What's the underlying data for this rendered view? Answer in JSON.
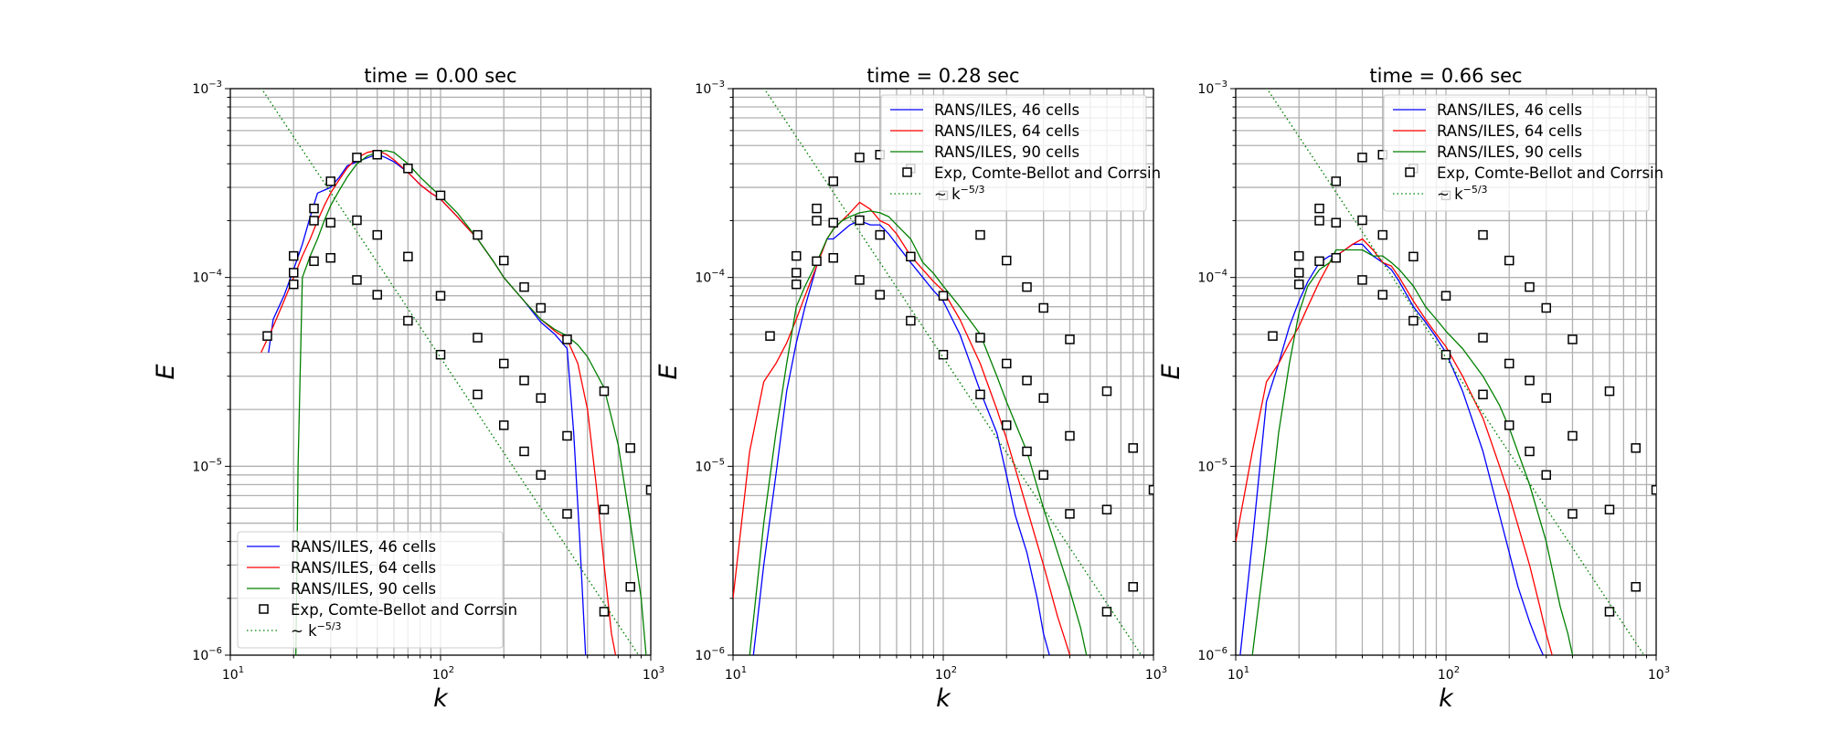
{
  "chart_data": [
    {
      "type": "line",
      "title": "time = 0.00 sec",
      "xlabel": "k",
      "ylabel": "E",
      "xscale": "log",
      "yscale": "log",
      "xlim": [
        10,
        1000
      ],
      "ylim": [
        1e-06,
        0.001
      ],
      "grid": true,
      "legend_position": "lower-left",
      "series": [
        {
          "name": "RANS/ILES, 46 cells",
          "color": "#0000ff",
          "style": "solid",
          "x": [
            15.2,
            16,
            18,
            20,
            22,
            24,
            26,
            28,
            30,
            33,
            36,
            40,
            45,
            50,
            55,
            60,
            70,
            80,
            90,
            100,
            120,
            150,
            180,
            200,
            250,
            300,
            350,
            400,
            430,
            460,
            490
          ],
          "y": [
            4e-05,
            6e-05,
            8e-05,
            0.00011,
            0.00015,
            0.00021,
            0.00028,
            0.00029,
            0.0003,
            0.00034,
            0.00039,
            0.00041,
            0.00043,
            0.00045,
            0.00043,
            0.00041,
            0.00036,
            0.00031,
            0.00028,
            0.00026,
            0.00021,
            0.00016,
            0.00012,
            0.0001,
            7.5e-05,
            5.8e-05,
            5e-05,
            4.2e-05,
            1.5e-05,
            4e-06,
            1e-06
          ]
        },
        {
          "name": "RANS/ILES, 64 cells",
          "color": "#ff0000",
          "style": "solid",
          "x": [
            14,
            16,
            18,
            20,
            22,
            24,
            26,
            28,
            30,
            33,
            36,
            40,
            45,
            50,
            55,
            60,
            70,
            80,
            90,
            100,
            120,
            150,
            180,
            200,
            250,
            300,
            350,
            400,
            450,
            500,
            550,
            600,
            650,
            680
          ],
          "y": [
            4e-05,
            5.5e-05,
            7.5e-05,
            0.0001,
            0.00013,
            0.00016,
            0.0002,
            0.00024,
            0.00028,
            0.00033,
            0.00038,
            0.00043,
            0.00046,
            0.00047,
            0.00045,
            0.00042,
            0.00036,
            0.00031,
            0.00028,
            0.00026,
            0.00021,
            0.00016,
            0.00012,
            0.0001,
            7.5e-05,
            6e-05,
            5.2e-05,
            4.7e-05,
            3.5e-05,
            2e-05,
            8e-06,
            3e-06,
            1.3e-06,
            1e-06
          ]
        },
        {
          "name": "RANS/ILES, 90 cells",
          "color": "#008000",
          "style": "solid",
          "x": [
            20.5,
            21,
            22,
            24,
            26,
            28,
            30,
            33,
            36,
            40,
            45,
            50,
            55,
            60,
            70,
            80,
            90,
            100,
            120,
            150,
            180,
            200,
            250,
            300,
            350,
            400,
            450,
            500,
            600,
            700,
            800,
            900,
            950
          ],
          "y": [
            1e-06,
            1e-05,
            0.0001,
            0.00013,
            0.00016,
            0.0002,
            0.00024,
            0.00029,
            0.00034,
            0.0004,
            0.00044,
            0.00046,
            0.00047,
            0.00046,
            0.0004,
            0.00034,
            0.0003,
            0.00027,
            0.00022,
            0.00016,
            0.00012,
            0.0001,
            7.5e-05,
            6e-05,
            5.3e-05,
            4.9e-05,
            4.4e-05,
            3.8e-05,
            2.6e-05,
            1.3e-05,
            5e-06,
            2e-06,
            1e-06
          ]
        },
        {
          "name": "Exp, Comte-Bellot and Corrsin",
          "color": "#000000",
          "style": "square",
          "x": [
            15,
            20,
            20,
            20,
            25,
            25,
            25,
            30,
            30,
            30,
            40,
            40,
            40,
            50,
            50,
            50,
            70,
            70,
            70,
            100,
            100,
            100,
            150,
            150,
            150,
            200,
            200,
            200,
            250,
            250,
            250,
            300,
            300,
            300,
            400,
            400,
            400,
            600,
            600,
            600,
            800,
            800,
            1000
          ],
          "y": [
            4.9e-05,
            0.00013,
            0.000106,
            9.2e-05,
            0.000232,
            0.0002,
            0.000122,
            0.000323,
            0.000195,
            0.000127,
            0.000432,
            0.000201,
            9.7e-05,
            0.000447,
            0.000168,
            8.1e-05,
            0.000378,
            0.000129,
            5.9e-05,
            0.000272,
            8e-05,
            3.9e-05,
            0.000168,
            4.8e-05,
            2.4e-05,
            0.000123,
            3.5e-05,
            1.65e-05,
            8.9e-05,
            2.85e-05,
            1.2e-05,
            6.9e-05,
            2.3e-05,
            9e-06,
            4.7e-05,
            1.45e-05,
            5.6e-06,
            2.5e-05,
            5.9e-06,
            1.7e-06,
            1.25e-05,
            2.3e-06,
            7.5e-06
          ]
        },
        {
          "name": "~ k^{-5/3}",
          "color": "#008000",
          "style": "dotted",
          "x": [
            14,
            1000
          ],
          "y": [
            0.00101,
            8e-07
          ]
        }
      ]
    },
    {
      "type": "line",
      "title": "time = 0.28 sec",
      "xlabel": "k",
      "ylabel": "E",
      "xscale": "log",
      "yscale": "log",
      "xlim": [
        10,
        1000
      ],
      "ylim": [
        1e-06,
        0.001
      ],
      "grid": true,
      "legend_position": "upper-right",
      "series": [
        {
          "name": "RANS/ILES, 46 cells",
          "color": "#0000ff",
          "style": "solid",
          "x": [
            12.5,
            14,
            16,
            18,
            20,
            22,
            25,
            28,
            30,
            33,
            36,
            40,
            45,
            50,
            55,
            60,
            70,
            80,
            90,
            100,
            120,
            150,
            180,
            200,
            220,
            250,
            280,
            300,
            320
          ],
          "y": [
            1e-06,
            3e-06,
            9e-06,
            2.5e-05,
            4.5e-05,
            7e-05,
            0.000115,
            0.00016,
            0.00016,
            0.000175,
            0.00019,
            0.0002,
            0.00019,
            0.00019,
            0.00017,
            0.00015,
            0.00012,
            0.0001,
            8.5e-05,
            7.5e-05,
            5e-05,
            2.5e-05,
            1.5e-05,
            9e-06,
            5.5e-06,
            3.5e-06,
            2e-06,
            1.3e-06,
            1e-06
          ]
        },
        {
          "name": "RANS/ILES, 64 cells",
          "color": "#ff0000",
          "style": "solid",
          "x": [
            10,
            12,
            14,
            16,
            18,
            20,
            22,
            25,
            28,
            30,
            33,
            36,
            40,
            45,
            50,
            55,
            60,
            70,
            80,
            90,
            100,
            120,
            150,
            180,
            200,
            250,
            300,
            350,
            380,
            400
          ],
          "y": [
            2e-06,
            1.2e-05,
            2.8e-05,
            3.5e-05,
            4.5e-05,
            6e-05,
            8e-05,
            0.000115,
            0.00016,
            0.00018,
            0.0002,
            0.00022,
            0.00025,
            0.00023,
            0.0002,
            0.00019,
            0.00017,
            0.00013,
            0.00011,
            9.5e-05,
            8.5e-05,
            6e-05,
            3.5e-05,
            2e-05,
            1.4e-05,
            6e-06,
            3e-06,
            1.6e-06,
            1.2e-06,
            1e-06
          ]
        },
        {
          "name": "RANS/ILES, 90 cells",
          "color": "#008000",
          "style": "solid",
          "x": [
            12,
            14,
            16,
            18,
            20,
            22,
            25,
            28,
            30,
            33,
            36,
            40,
            45,
            50,
            55,
            60,
            70,
            80,
            90,
            100,
            120,
            150,
            180,
            200,
            250,
            300,
            350,
            400,
            450,
            480
          ],
          "y": [
            1e-06,
            5e-06,
            1.5e-05,
            3.5e-05,
            7e-05,
            9e-05,
            0.00012,
            0.00016,
            0.00018,
            0.0002,
            0.00021,
            0.00022,
            0.000225,
            0.00022,
            0.00021,
            0.00019,
            0.00016,
            0.00012,
            0.000105,
            9e-05,
            7e-05,
            5e-05,
            3e-05,
            2.2e-05,
            1.2e-05,
            6e-06,
            3.5e-06,
            2.2e-06,
            1.4e-06,
            1e-06
          ]
        },
        {
          "name": "Exp, Comte-Bellot and Corrsin",
          "color": "#000000",
          "style": "square",
          "x": [
            15,
            20,
            20,
            20,
            25,
            25,
            25,
            30,
            30,
            30,
            40,
            40,
            40,
            50,
            50,
            50,
            70,
            70,
            70,
            100,
            100,
            100,
            150,
            150,
            150,
            200,
            200,
            200,
            250,
            250,
            250,
            300,
            300,
            300,
            400,
            400,
            400,
            600,
            600,
            600,
            800,
            800,
            1000
          ],
          "y": [
            4.9e-05,
            0.00013,
            0.000106,
            9.2e-05,
            0.000232,
            0.0002,
            0.000122,
            0.000323,
            0.000195,
            0.000127,
            0.000432,
            0.000201,
            9.7e-05,
            0.000447,
            0.000168,
            8.1e-05,
            0.000378,
            0.000129,
            5.9e-05,
            0.000272,
            8e-05,
            3.9e-05,
            0.000168,
            4.8e-05,
            2.4e-05,
            0.000123,
            3.5e-05,
            1.65e-05,
            8.9e-05,
            2.85e-05,
            1.2e-05,
            6.9e-05,
            2.3e-05,
            9e-06,
            4.7e-05,
            1.45e-05,
            5.6e-06,
            2.5e-05,
            5.9e-06,
            1.7e-06,
            1.25e-05,
            2.3e-06,
            7.5e-06
          ]
        },
        {
          "name": "~ k^{-5/3}",
          "color": "#008000",
          "style": "dotted",
          "x": [
            14,
            1000
          ],
          "y": [
            0.00101,
            8e-07
          ]
        }
      ]
    },
    {
      "type": "line",
      "title": "time = 0.66 sec",
      "xlabel": "k",
      "ylabel": "E",
      "xscale": "log",
      "yscale": "log",
      "xlim": [
        10,
        1000
      ],
      "ylim": [
        1e-06,
        0.001
      ],
      "grid": true,
      "legend_position": "upper-right",
      "series": [
        {
          "name": "RANS/ILES, 46 cells",
          "color": "#0000ff",
          "style": "solid",
          "x": [
            10.5,
            12,
            14,
            16,
            18,
            20,
            22,
            25,
            28,
            30,
            33,
            36,
            40,
            45,
            50,
            55,
            60,
            70,
            80,
            90,
            100,
            120,
            150,
            180,
            200,
            220,
            250,
            270,
            290
          ],
          "y": [
            1e-06,
            4e-06,
            2.2e-05,
            3.5e-05,
            5.5e-05,
            7.5e-05,
            9.5e-05,
            0.00012,
            0.00013,
            0.00013,
            0.00014,
            0.00015,
            0.00015,
            0.00013,
            0.00012,
            0.00011,
            9.5e-05,
            7e-05,
            5.8e-05,
            4.8e-05,
            4e-05,
            2.5e-05,
            1.2e-05,
            5.5e-06,
            3.5e-06,
            2.3e-06,
            1.5e-06,
            1.2e-06,
            1e-06
          ]
        },
        {
          "name": "RANS/ILES, 64 cells",
          "color": "#ff0000",
          "style": "solid",
          "x": [
            10,
            12,
            14,
            16,
            18,
            20,
            22,
            25,
            28,
            30,
            33,
            36,
            40,
            45,
            50,
            55,
            60,
            70,
            80,
            90,
            100,
            120,
            150,
            180,
            200,
            250,
            280,
            300,
            320
          ],
          "y": [
            4e-06,
            1.2e-05,
            2.8e-05,
            3.5e-05,
            4.5e-05,
            5.5e-05,
            7e-05,
            9.5e-05,
            0.00012,
            0.00013,
            0.00014,
            0.00015,
            0.00016,
            0.00014,
            0.00012,
            0.000115,
            0.0001,
            7.5e-05,
            6e-05,
            5e-05,
            4.3e-05,
            3e-05,
            1.8e-05,
            1e-05,
            7e-06,
            3e-06,
            1.8e-06,
            1.3e-06,
            1e-06
          ]
        },
        {
          "name": "RANS/ILES, 90 cells",
          "color": "#008000",
          "style": "solid",
          "x": [
            12,
            14,
            16,
            18,
            20,
            22,
            25,
            28,
            30,
            33,
            36,
            40,
            45,
            50,
            55,
            60,
            70,
            80,
            90,
            100,
            120,
            150,
            180,
            200,
            250,
            300,
            350,
            380,
            400
          ],
          "y": [
            1e-06,
            4e-06,
            1.5e-05,
            3.5e-05,
            6.5e-05,
            9e-05,
            0.00011,
            0.00012,
            0.00014,
            0.00014,
            0.00014,
            0.00014,
            0.00013,
            0.00013,
            0.00012,
            0.00011,
            9e-05,
            7e-05,
            6e-05,
            5.2e-05,
            4.2e-05,
            3e-05,
            2.1e-05,
            1.6e-05,
            8e-06,
            4e-06,
            1.8e-06,
            1.3e-06,
            1e-06
          ]
        },
        {
          "name": "Exp, Comte-Bellot and Corrsin",
          "color": "#000000",
          "style": "square",
          "x": [
            15,
            20,
            20,
            20,
            25,
            25,
            25,
            30,
            30,
            30,
            40,
            40,
            40,
            50,
            50,
            50,
            70,
            70,
            70,
            100,
            100,
            100,
            150,
            150,
            150,
            200,
            200,
            200,
            250,
            250,
            250,
            300,
            300,
            300,
            400,
            400,
            400,
            600,
            600,
            600,
            800,
            800,
            1000
          ],
          "y": [
            4.9e-05,
            0.00013,
            0.000106,
            9.2e-05,
            0.000232,
            0.0002,
            0.000122,
            0.000323,
            0.000195,
            0.000127,
            0.000432,
            0.000201,
            9.7e-05,
            0.000447,
            0.000168,
            8.1e-05,
            0.000378,
            0.000129,
            5.9e-05,
            0.000272,
            8e-05,
            3.9e-05,
            0.000168,
            4.8e-05,
            2.4e-05,
            0.000123,
            3.5e-05,
            1.65e-05,
            8.9e-05,
            2.85e-05,
            1.2e-05,
            6.9e-05,
            2.3e-05,
            9e-06,
            4.7e-05,
            1.45e-05,
            5.6e-06,
            2.5e-05,
            5.9e-06,
            1.7e-06,
            1.25e-05,
            2.3e-06,
            7.5e-06
          ]
        },
        {
          "name": "~ k^{-5/3}",
          "color": "#008000",
          "style": "dotted",
          "x": [
            14,
            1000
          ],
          "y": [
            0.00101,
            8e-07
          ]
        }
      ]
    }
  ]
}
